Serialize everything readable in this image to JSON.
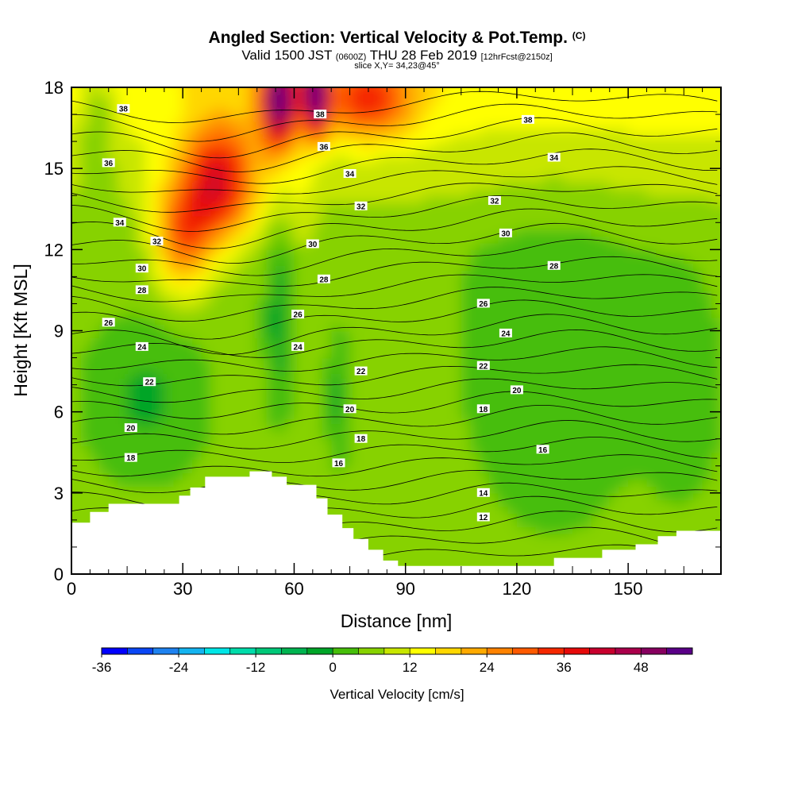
{
  "header": {
    "title": "Angled Section: Vertical Velocity & Pot.Temp.",
    "title_units": "(C)",
    "valid_prefix": "Valid 1500 JST",
    "valid_z": "(0600Z)",
    "valid_date": "THU 28 Feb 2019",
    "fcst": "[12hrFcst@2150z]",
    "slice": "slice X,Y= 34,23@45°"
  },
  "chart_data": {
    "type": "heatmap",
    "xlabel": "Distance [nm]",
    "ylabel": "Height [Kft MSL]",
    "xlim": [
      0,
      175
    ],
    "ylim": [
      0,
      18
    ],
    "xticks": [
      0,
      30,
      60,
      90,
      120,
      150
    ],
    "yticks": [
      0,
      3,
      6,
      9,
      12,
      15,
      18
    ],
    "colorbar": {
      "title": "Vertical Velocity [cm/s]",
      "min": -36,
      "max": 52,
      "step": 4,
      "tick_values": [
        -36,
        -24,
        -12,
        0,
        12,
        24,
        36,
        48
      ],
      "colors": [
        "#0000ff",
        "#0a46f5",
        "#1e82f0",
        "#14b4f0",
        "#00e6e6",
        "#00dcaa",
        "#00c878",
        "#00b450",
        "#00a528",
        "#46be0a",
        "#87d200",
        "#c8e600",
        "#ffff00",
        "#ffd700",
        "#ffaa00",
        "#ff8200",
        "#ff5a00",
        "#f52800",
        "#e60a0a",
        "#c8002d",
        "#aa004b",
        "#87005f",
        "#5a0087"
      ]
    },
    "isentrope_labels": [
      {
        "x": 14,
        "y": 17.2,
        "v": "38"
      },
      {
        "x": 67,
        "y": 17.0,
        "v": "38"
      },
      {
        "x": 123,
        "y": 16.8,
        "v": "38"
      },
      {
        "x": 10,
        "y": 15.2,
        "v": "36"
      },
      {
        "x": 68,
        "y": 15.8,
        "v": "36"
      },
      {
        "x": 75,
        "y": 14.8,
        "v": "34"
      },
      {
        "x": 130,
        "y": 15.4,
        "v": "34"
      },
      {
        "x": 13,
        "y": 13.0,
        "v": "34"
      },
      {
        "x": 78,
        "y": 13.6,
        "v": "32"
      },
      {
        "x": 114,
        "y": 13.8,
        "v": "32"
      },
      {
        "x": 23,
        "y": 12.3,
        "v": "32"
      },
      {
        "x": 65,
        "y": 12.2,
        "v": "30"
      },
      {
        "x": 117,
        "y": 12.6,
        "v": "30"
      },
      {
        "x": 19,
        "y": 11.3,
        "v": "30"
      },
      {
        "x": 68,
        "y": 10.9,
        "v": "28"
      },
      {
        "x": 130,
        "y": 11.4,
        "v": "28"
      },
      {
        "x": 19,
        "y": 10.5,
        "v": "28"
      },
      {
        "x": 61,
        "y": 9.6,
        "v": "26"
      },
      {
        "x": 111,
        "y": 10.0,
        "v": "26"
      },
      {
        "x": 10,
        "y": 9.3,
        "v": "26"
      },
      {
        "x": 19,
        "y": 8.4,
        "v": "24"
      },
      {
        "x": 61,
        "y": 8.4,
        "v": "24"
      },
      {
        "x": 117,
        "y": 8.9,
        "v": "24"
      },
      {
        "x": 21,
        "y": 7.1,
        "v": "22"
      },
      {
        "x": 78,
        "y": 7.5,
        "v": "22"
      },
      {
        "x": 111,
        "y": 7.7,
        "v": "22"
      },
      {
        "x": 16,
        "y": 5.4,
        "v": "20"
      },
      {
        "x": 75,
        "y": 6.1,
        "v": "20"
      },
      {
        "x": 120,
        "y": 6.8,
        "v": "20"
      },
      {
        "x": 16,
        "y": 4.3,
        "v": "18"
      },
      {
        "x": 78,
        "y": 5.0,
        "v": "18"
      },
      {
        "x": 111,
        "y": 6.1,
        "v": "18"
      },
      {
        "x": 72,
        "y": 4.1,
        "v": "16"
      },
      {
        "x": 127,
        "y": 4.6,
        "v": "16"
      },
      {
        "x": 111,
        "y": 3.0,
        "v": "14"
      },
      {
        "x": 111,
        "y": 2.1,
        "v": "12"
      }
    ]
  }
}
